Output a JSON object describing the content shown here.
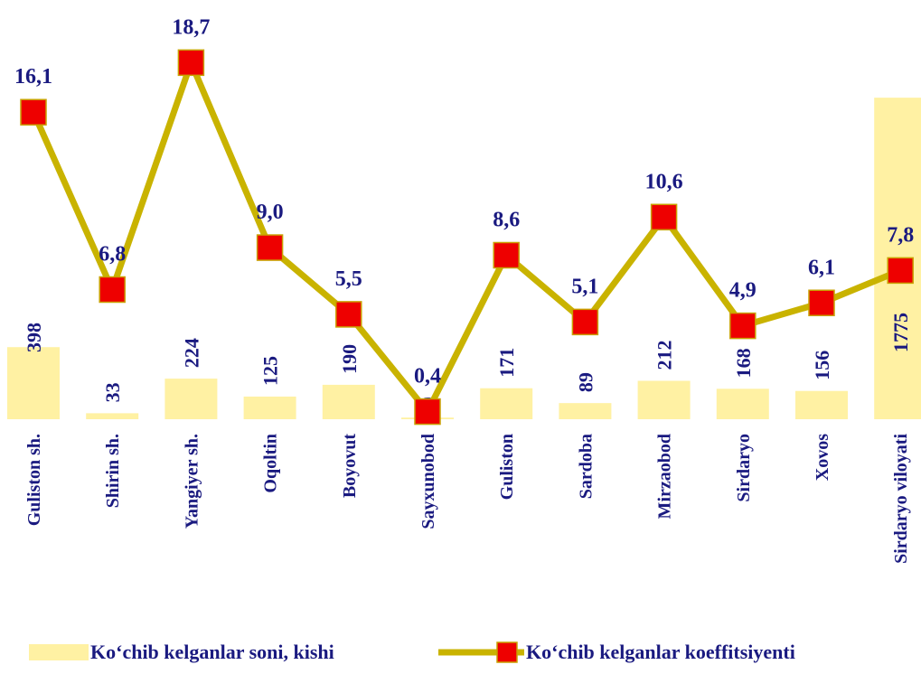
{
  "chart_data": {
    "type": "bar_line",
    "categories": [
      "Guliston sh.",
      "Shirin sh.",
      "Yangiyer sh.",
      "Oqoltin",
      "Boyovut",
      "Sayxunobod",
      "Guliston",
      "Sardoba",
      "Mirzaobod",
      "Sirdaryo",
      "Xovos",
      "Sirdaryo viloyati"
    ],
    "series": [
      {
        "name": "Ko‘chib kelganlar soni, kishi",
        "type": "bar",
        "color": "#fff1a3",
        "values": [
          398,
          33,
          224,
          125,
          190,
          9,
          171,
          89,
          212,
          168,
          156,
          1775
        ]
      },
      {
        "name": "Ko‘chib kelganlar koeffitsiyenti",
        "type": "line",
        "axis": "y2",
        "color": "#c9b300",
        "marker_color": "#ee0000",
        "values": [
          16.1,
          6.8,
          18.7,
          9.0,
          5.5,
          0.4,
          8.6,
          5.1,
          10.6,
          4.9,
          6.1,
          7.8
        ],
        "value_labels": [
          "16,1",
          "6,8",
          "18,7",
          "9,0",
          "5,5",
          "0,4",
          "8,6",
          "5,1",
          "10,6",
          "4,9",
          "6,1",
          "7,8"
        ]
      }
    ],
    "ylim": [
      0,
      2000
    ],
    "y2lim": [
      0,
      19
    ],
    "legend": "bottom"
  }
}
